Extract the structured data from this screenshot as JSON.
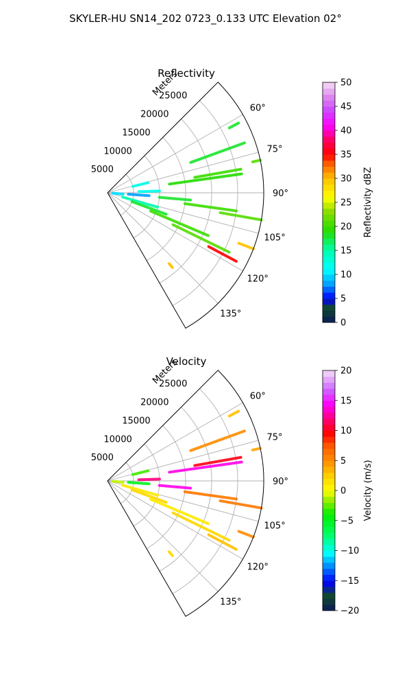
{
  "suptitle": "SKYLER-HU  SN14_202  0723_0.133 UTC Elevation 02°",
  "chart_data": [
    {
      "type": "polar-sector",
      "title": "Reflectivity",
      "field": "reflectivity",
      "range_label": "Meters",
      "range_ticks": [
        5000,
        10000,
        15000,
        20000,
        25000
      ],
      "range_tick_labels": [
        "5000",
        "10000",
        "15000",
        "20000",
        "25000"
      ],
      "rmax": 30000,
      "theta_range_deg": [
        45,
        150
      ],
      "theta_ticks": [
        60,
        75,
        90,
        105,
        120,
        135
      ],
      "theta_tick_labels": [
        "60°",
        "75°",
        "90°",
        "105°",
        "120°",
        "135°"
      ],
      "grid": true,
      "colorbar": {
        "label": "Reflectivity dBZ",
        "vmin": 0,
        "vmax": 50,
        "ticks": [
          0,
          5,
          10,
          15,
          20,
          25,
          30,
          35,
          40,
          45,
          50
        ],
        "tick_labels": [
          "0",
          "5",
          "10",
          "15",
          "20",
          "25",
          "30",
          "35",
          "40",
          "45",
          "50"
        ]
      },
      "echoes": [
        {
          "az": 62,
          "r0": 26500,
          "r1": 28500,
          "v": 18
        },
        {
          "az": 70,
          "r0": 17000,
          "r1": 28000,
          "v": 18
        },
        {
          "az": 76,
          "r0": 5000,
          "r1": 8000,
          "v": 12
        },
        {
          "az": 80,
          "r0": 17000,
          "r1": 26000,
          "v": 20
        },
        {
          "az": 82,
          "r0": 12000,
          "r1": 26000,
          "v": 19
        },
        {
          "az": 78,
          "r0": 28500,
          "r1": 30000,
          "v": 21
        },
        {
          "az": 88,
          "r0": 6000,
          "r1": 10000,
          "v": 12
        },
        {
          "az": 94,
          "r0": 4000,
          "r1": 8000,
          "v": 8
        },
        {
          "az": 95,
          "r0": 10000,
          "r1": 16000,
          "v": 18
        },
        {
          "az": 98,
          "r0": 15000,
          "r1": 25000,
          "v": 20
        },
        {
          "az": 100,
          "r0": 22000,
          "r1": 30000,
          "v": 21
        },
        {
          "az": 106,
          "r0": 3000,
          "r1": 10000,
          "v": 15
        },
        {
          "az": 110,
          "r0": 5000,
          "r1": 12000,
          "v": 18
        },
        {
          "az": 113,
          "r0": 9000,
          "r1": 21000,
          "v": 20
        },
        {
          "az": 116,
          "r0": 14000,
          "r1": 26000,
          "v": 21
        },
        {
          "az": 118,
          "r0": 22000,
          "r1": 28000,
          "v": 35
        },
        {
          "az": 111,
          "r0": 27000,
          "r1": 30000,
          "v": 30
        },
        {
          "az": 139,
          "r0": 18000,
          "r1": 19000,
          "v": 30
        },
        {
          "az": 95,
          "r0": 1000,
          "r1": 3000,
          "v": 10
        }
      ]
    },
    {
      "type": "polar-sector",
      "title": "Velocity",
      "field": "velocity",
      "range_label": "Meters",
      "range_ticks": [
        5000,
        10000,
        15000,
        20000,
        25000
      ],
      "range_tick_labels": [
        "5000",
        "10000",
        "15000",
        "20000",
        "25000"
      ],
      "rmax": 30000,
      "theta_range_deg": [
        45,
        150
      ],
      "theta_ticks": [
        60,
        75,
        90,
        105,
        120,
        135
      ],
      "theta_tick_labels": [
        "60°",
        "75°",
        "90°",
        "105°",
        "120°",
        "135°"
      ],
      "grid": true,
      "colorbar": {
        "label": "Velocity (m/s)",
        "vmin": -20,
        "vmax": 20,
        "ticks": [
          -20,
          -15,
          -10,
          -5,
          0,
          5,
          10,
          15,
          20
        ],
        "tick_labels": [
          "−20",
          "−15",
          "−10",
          "−5",
          "0",
          "5",
          "10",
          "15",
          "20"
        ]
      },
      "echoes": [
        {
          "az": 62,
          "r0": 26500,
          "r1": 28500,
          "v": 3
        },
        {
          "az": 70,
          "r0": 17000,
          "r1": 28000,
          "v": 5
        },
        {
          "az": 76,
          "r0": 5000,
          "r1": 8000,
          "v": -3
        },
        {
          "az": 80,
          "r0": 17000,
          "r1": 26000,
          "v": 10
        },
        {
          "az": 82,
          "r0": 12000,
          "r1": 26000,
          "v": 14
        },
        {
          "az": 78,
          "r0": 28500,
          "r1": 30000,
          "v": 4
        },
        {
          "az": 88,
          "r0": 6000,
          "r1": 10000,
          "v": 12
        },
        {
          "az": 94,
          "r0": 4000,
          "r1": 8000,
          "v": -5
        },
        {
          "az": 95,
          "r0": 10000,
          "r1": 16000,
          "v": 14
        },
        {
          "az": 98,
          "r0": 15000,
          "r1": 25000,
          "v": 6
        },
        {
          "az": 100,
          "r0": 22000,
          "r1": 30000,
          "v": 6
        },
        {
          "az": 106,
          "r0": 3000,
          "r1": 10000,
          "v": 1
        },
        {
          "az": 110,
          "r0": 5000,
          "r1": 12000,
          "v": 2
        },
        {
          "az": 113,
          "r0": 9000,
          "r1": 21000,
          "v": 1
        },
        {
          "az": 116,
          "r0": 14000,
          "r1": 26000,
          "v": 2
        },
        {
          "az": 118,
          "r0": 22000,
          "r1": 28000,
          "v": 3
        },
        {
          "az": 111,
          "r0": 27000,
          "r1": 30000,
          "v": 5
        },
        {
          "az": 139,
          "r0": 18000,
          "r1": 19000,
          "v": 2
        },
        {
          "az": 95,
          "r0": 1000,
          "r1": 3000,
          "v": -1
        }
      ]
    }
  ]
}
